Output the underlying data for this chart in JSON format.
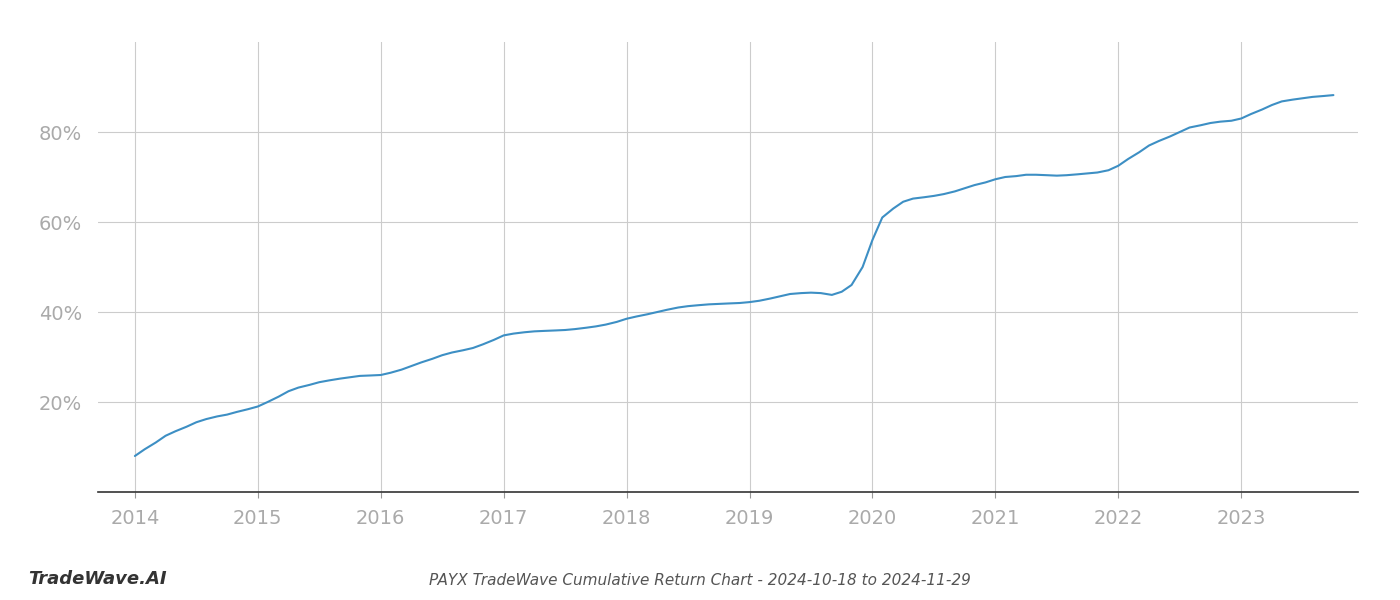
{
  "title": "PAYX TradeWave Cumulative Return Chart - 2024-10-18 to 2024-11-29",
  "watermark": "TradeWave.AI",
  "line_color": "#3d8fc4",
  "background_color": "#ffffff",
  "grid_color": "#cccccc",
  "x_values": [
    2014.0,
    2014.08,
    2014.17,
    2014.25,
    2014.33,
    2014.42,
    2014.5,
    2014.58,
    2014.67,
    2014.75,
    2014.83,
    2014.92,
    2015.0,
    2015.08,
    2015.17,
    2015.25,
    2015.33,
    2015.42,
    2015.5,
    2015.58,
    2015.67,
    2015.75,
    2015.83,
    2015.92,
    2016.0,
    2016.08,
    2016.17,
    2016.25,
    2016.33,
    2016.42,
    2016.5,
    2016.58,
    2016.67,
    2016.75,
    2016.83,
    2016.92,
    2017.0,
    2017.08,
    2017.17,
    2017.25,
    2017.33,
    2017.42,
    2017.5,
    2017.58,
    2017.67,
    2017.75,
    2017.83,
    2017.92,
    2018.0,
    2018.08,
    2018.17,
    2018.25,
    2018.33,
    2018.42,
    2018.5,
    2018.58,
    2018.67,
    2018.75,
    2018.83,
    2018.92,
    2019.0,
    2019.08,
    2019.17,
    2019.25,
    2019.33,
    2019.42,
    2019.5,
    2019.58,
    2019.67,
    2019.75,
    2019.83,
    2019.92,
    2020.0,
    2020.08,
    2020.17,
    2020.25,
    2020.33,
    2020.42,
    2020.5,
    2020.58,
    2020.67,
    2020.75,
    2020.83,
    2020.92,
    2021.0,
    2021.08,
    2021.17,
    2021.25,
    2021.33,
    2021.42,
    2021.5,
    2021.58,
    2021.67,
    2021.75,
    2021.83,
    2021.92,
    2022.0,
    2022.08,
    2022.17,
    2022.25,
    2022.33,
    2022.42,
    2022.5,
    2022.58,
    2022.67,
    2022.75,
    2022.83,
    2022.92,
    2023.0,
    2023.08,
    2023.17,
    2023.25,
    2023.33,
    2023.42,
    2023.5,
    2023.58,
    2023.67,
    2023.75
  ],
  "y_values": [
    8.0,
    9.5,
    11.0,
    12.5,
    13.5,
    14.5,
    15.5,
    16.2,
    16.8,
    17.2,
    17.8,
    18.4,
    19.0,
    20.0,
    21.2,
    22.4,
    23.2,
    23.8,
    24.4,
    24.8,
    25.2,
    25.5,
    25.8,
    25.9,
    26.0,
    26.5,
    27.2,
    28.0,
    28.8,
    29.6,
    30.4,
    31.0,
    31.5,
    32.0,
    32.8,
    33.8,
    34.8,
    35.2,
    35.5,
    35.7,
    35.8,
    35.9,
    36.0,
    36.2,
    36.5,
    36.8,
    37.2,
    37.8,
    38.5,
    39.0,
    39.5,
    40.0,
    40.5,
    41.0,
    41.3,
    41.5,
    41.7,
    41.8,
    41.9,
    42.0,
    42.2,
    42.5,
    43.0,
    43.5,
    44.0,
    44.2,
    44.3,
    44.2,
    43.8,
    44.5,
    46.0,
    50.0,
    56.0,
    61.0,
    63.0,
    64.5,
    65.2,
    65.5,
    65.8,
    66.2,
    66.8,
    67.5,
    68.2,
    68.8,
    69.5,
    70.0,
    70.2,
    70.5,
    70.5,
    70.4,
    70.3,
    70.4,
    70.6,
    70.8,
    71.0,
    71.5,
    72.5,
    74.0,
    75.5,
    77.0,
    78.0,
    79.0,
    80.0,
    81.0,
    81.5,
    82.0,
    82.3,
    82.5,
    83.0,
    84.0,
    85.0,
    86.0,
    86.8,
    87.2,
    87.5,
    87.8,
    88.0,
    88.2
  ],
  "xlim": [
    2013.7,
    2023.95
  ],
  "ylim": [
    0,
    100
  ],
  "yticks": [
    20,
    40,
    60,
    80
  ],
  "ytick_labels": [
    "20%",
    "40%",
    "60%",
    "80%"
  ],
  "xticks": [
    2014,
    2015,
    2016,
    2017,
    2018,
    2019,
    2020,
    2021,
    2022,
    2023
  ],
  "xtick_labels": [
    "2014",
    "2015",
    "2016",
    "2017",
    "2018",
    "2019",
    "2020",
    "2021",
    "2022",
    "2023"
  ],
  "line_width": 1.5,
  "title_fontsize": 11,
  "tick_fontsize": 14,
  "watermark_fontsize": 13
}
